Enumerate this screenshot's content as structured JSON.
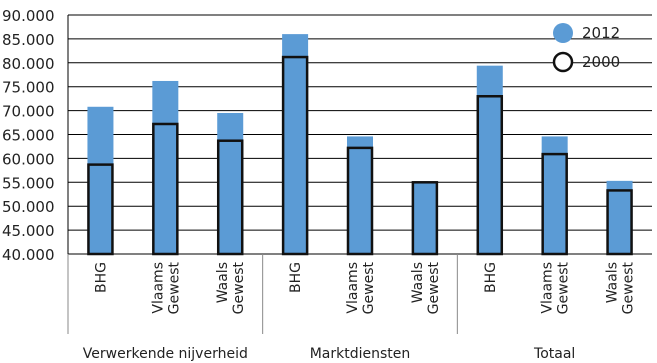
{
  "chart_data": {
    "type": "bar",
    "groups": [
      {
        "label": "Verwerkende nijverheid",
        "categories": [
          "BHG",
          "Vlaams Gewest",
          "Waals Gewest"
        ]
      },
      {
        "label": "Marktdiensten",
        "categories": [
          "BHG",
          "Vlaams Gewest",
          "Waals Gewest"
        ]
      },
      {
        "label": "Totaal",
        "categories": [
          "BHG",
          "Vlaams Gewest",
          "Waals Gewest"
        ]
      }
    ],
    "categories": [
      "BHG",
      "Vlaams Gewest",
      "Waals Gewest",
      "BHG",
      "Vlaams Gewest",
      "Waals Gewest",
      "BHG",
      "Vlaams Gewest",
      "Waals Gewest"
    ],
    "series": [
      {
        "name": "2012",
        "style": "filled",
        "values": [
          70800,
          76200,
          69500,
          86000,
          64600,
          55000,
          79400,
          64600,
          55300
        ]
      },
      {
        "name": "2000",
        "style": "outline",
        "values": [
          58700,
          67200,
          63700,
          81200,
          62200,
          55000,
          73000,
          60900,
          53300
        ]
      }
    ],
    "ylim": [
      40000,
      90000
    ],
    "yticks": [
      "40.000",
      "45.000",
      "50.000",
      "55.000",
      "60.000",
      "65.000",
      "70.000",
      "75.000",
      "80.000",
      "85.000",
      "90.000"
    ],
    "ytick_step": 5000,
    "grid": true,
    "legend_position": "top-right",
    "colors": {
      "series_2012": "#5b9bd5",
      "series_2000_outline": "#111111",
      "grid": "#000000"
    }
  }
}
